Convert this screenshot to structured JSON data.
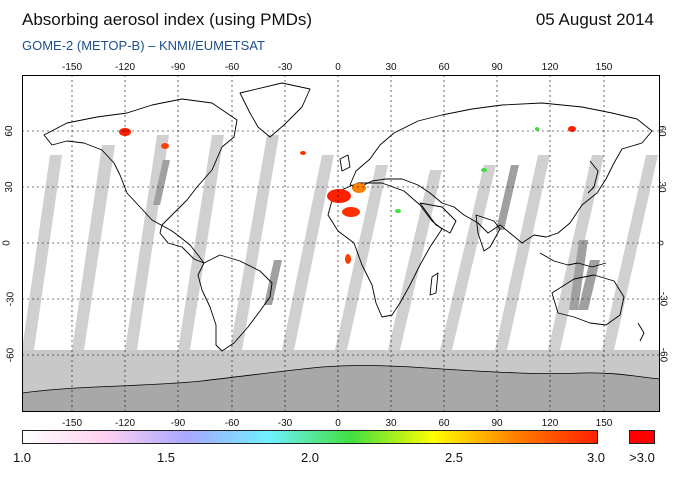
{
  "header": {
    "title": "Absorbing aerosol index (using PMDs)",
    "date": "05 August 2014",
    "subtitle": "GOME-2 (METOP-B)  –  KNMI/EUMETSAT"
  },
  "axes": {
    "longitude_ticks": [
      "-150",
      "-120",
      "-90",
      "-60",
      "-30",
      "0",
      "30",
      "60",
      "90",
      "120",
      "150"
    ],
    "latitude_ticks": [
      "60",
      "30",
      "0",
      "-30",
      "-60"
    ]
  },
  "colorbar": {
    "labels": [
      "1.0",
      "1.5",
      "2.0",
      "2.5",
      "3.0"
    ],
    "overflow_label": ">3.0",
    "colors": [
      "#ffffff",
      "#ffd0f0",
      "#a8a8ff",
      "#70f0ff",
      "#40e040",
      "#ffff00",
      "#ff8000",
      "#ff2000"
    ],
    "overflow_color": "#ff0000"
  },
  "map_colors": {
    "ocean": "#ffffff",
    "swath_gap": "#d0d0d0",
    "polar_fill": "#c8c8c8",
    "antarctica": "#a8a8a8",
    "coast": "#000000"
  }
}
